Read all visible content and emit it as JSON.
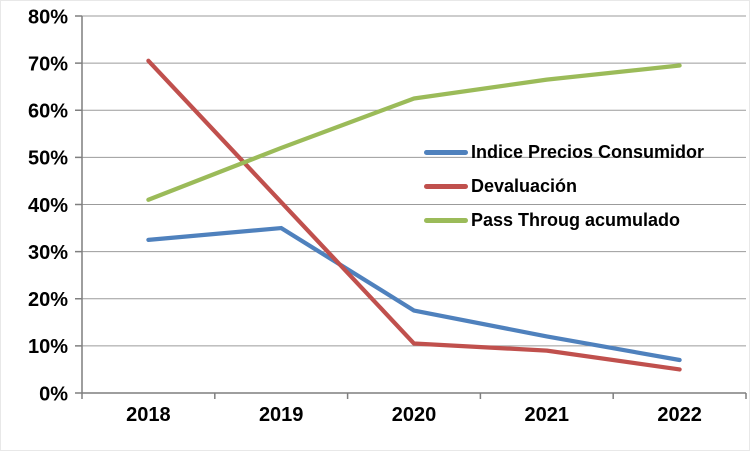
{
  "chart_data": {
    "type": "line",
    "title": "",
    "xlabel": "",
    "ylabel": "",
    "categories": [
      "2018",
      "2019",
      "2020",
      "2021",
      "2022"
    ],
    "series": [
      {
        "name": "Indice Precios Consumidor",
        "color": "#4F81BD",
        "values": [
          32.5,
          35,
          17.5,
          12,
          7
        ]
      },
      {
        "name": "Devaluación",
        "color": "#C0504D",
        "values": [
          70.5,
          40.5,
          10.5,
          9,
          5
        ]
      },
      {
        "name": "Pass Throug acumulado",
        "color": "#9BBB59",
        "values": [
          41,
          52,
          62.5,
          66.5,
          69.5
        ]
      }
    ],
    "ylim": [
      0,
      80
    ],
    "y_tick_step": 10,
    "y_tick_labels": [
      "0%",
      "10%",
      "20%",
      "30%",
      "40%",
      "50%",
      "60%",
      "70%",
      "80%"
    ],
    "grid": true,
    "legend_position": "overlay-center-right",
    "colors": {
      "grid_line": "#9b9b9b",
      "axis_line": "#7f7f7f",
      "tick_label": "#000000",
      "background": "#ffffff"
    }
  }
}
